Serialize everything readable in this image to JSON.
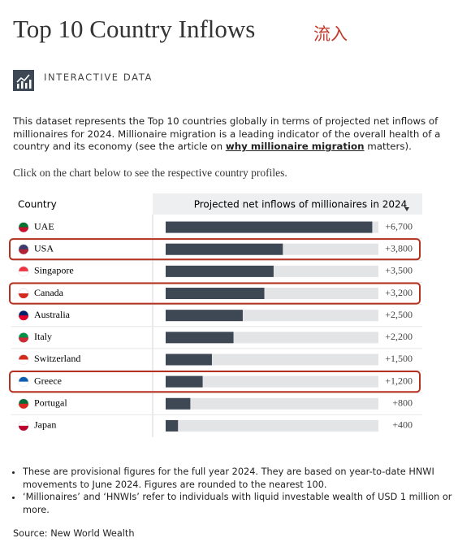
{
  "header": {
    "title": "Top 10 Country Inflows",
    "note": "流入",
    "section": "INTERACTIVE DATA"
  },
  "intro": {
    "before": "This dataset represents the Top 10 countries globally in terms of projected net inflows of millionaires for 2024. Millionaire migration is a leading indicator of the overall health of a country and its economy (see the article on ",
    "link": "why millionaire migration",
    "after": " matters).",
    "instruction": "Click on the chart below to see the respective country profiles."
  },
  "chart_data": {
    "type": "bar",
    "orientation": "horizontal",
    "category_header": "Country",
    "title": "Projected net inflows of millionaires in 2024",
    "categories": [
      "UAE",
      "USA",
      "Singapore",
      "Canada",
      "Australia",
      "Italy",
      "Switzerland",
      "Greece",
      "Portugal",
      "Japan"
    ],
    "values": [
      6700,
      3800,
      3500,
      3200,
      2500,
      2200,
      1500,
      1200,
      800,
      400
    ],
    "value_labels": [
      "+6,700",
      "+3,800",
      "+3,500",
      "+3,200",
      "+2,500",
      "+2,200",
      "+1,500",
      "+1,200",
      "+800",
      "+400"
    ],
    "color": "#3e4855",
    "track_color": "#e3e4e6",
    "xlim": [
      0,
      6900
    ]
  },
  "notes": [
    "These are provisional figures for the full year 2024. They are based on year-to-date HNWI movements to June 2024. Figures are rounded to the nearest 100.",
    "‘Millionaires’ and ‘HNWIs’ refer to individuals with liquid investable wealth of USD 1 million or more."
  ],
  "source": "Source: New World Wealth"
}
